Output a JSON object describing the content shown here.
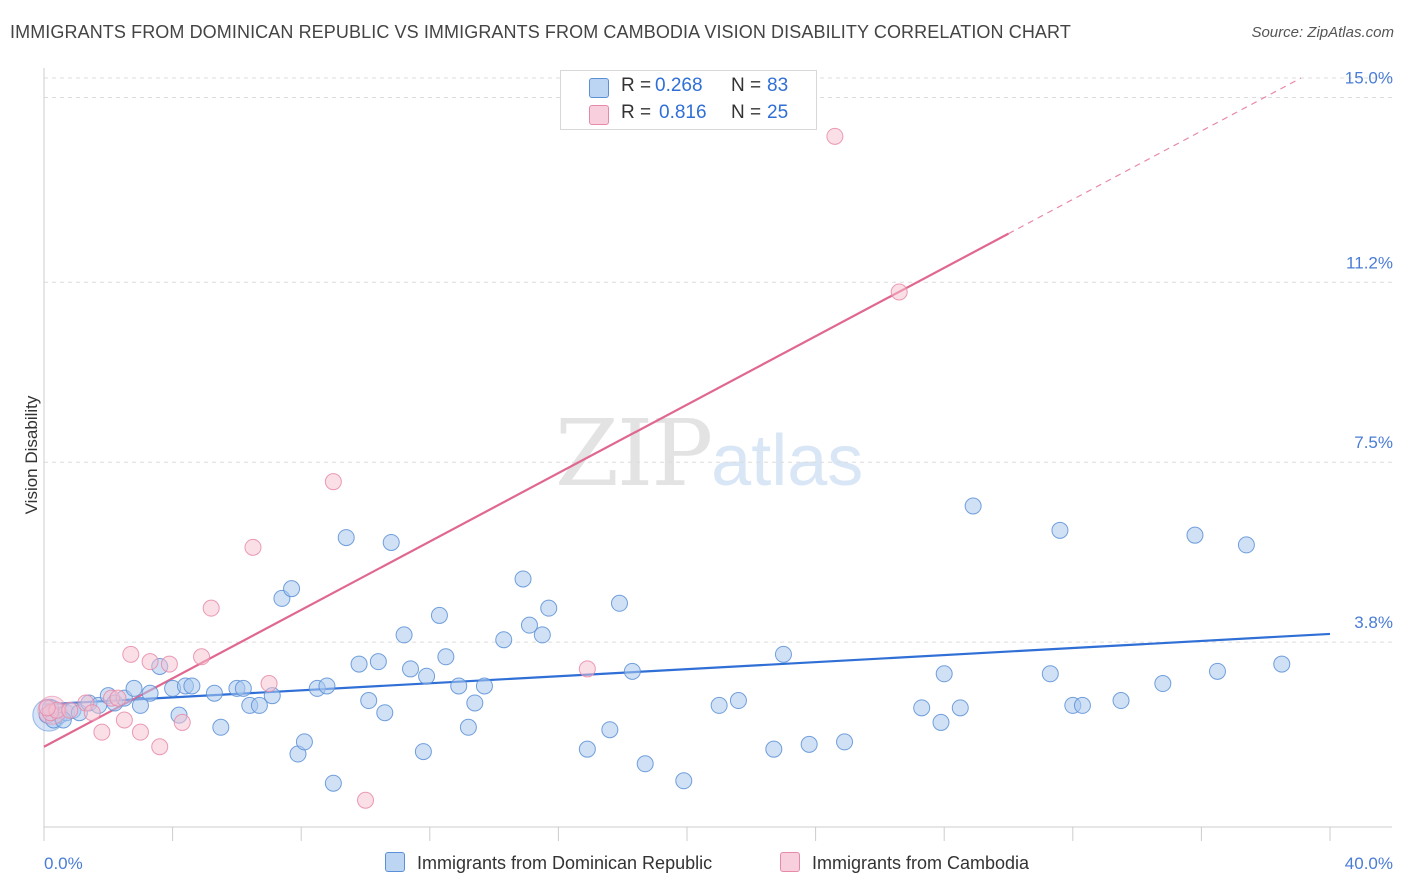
{
  "header": {
    "title": "IMMIGRANTS FROM DOMINICAN REPUBLIC VS IMMIGRANTS FROM CAMBODIA VISION DISABILITY CORRELATION CHART",
    "source": "Source: ZipAtlas.com"
  },
  "watermark": {
    "zip": "ZIP",
    "atlas": "atlas"
  },
  "legend": {
    "r_label": "R =",
    "n_label": "N =",
    "series": [
      {
        "r": "0.268",
        "n": "83"
      },
      {
        "r": "0.816",
        "n": "25"
      }
    ]
  },
  "bottom_legend": [
    "Immigrants from Dominican Republic",
    "Immigrants from Cambodia"
  ],
  "chart_data": {
    "type": "scatter",
    "title": "IMMIGRANTS FROM DOMINICAN REPUBLIC VS IMMIGRANTS FROM CAMBODIA VISION DISABILITY CORRELATION CHART",
    "xlabel": "",
    "ylabel": "Vision Disability",
    "xlim": [
      0,
      40
    ],
    "ylim": [
      0,
      15.4
    ],
    "x_tick_labels": [
      "0.0%",
      "40.0%"
    ],
    "y_ticks": [
      3.8,
      7.5,
      11.2,
      15.0
    ],
    "y_tick_labels": [
      "3.8%",
      "7.5%",
      "11.2%",
      "15.0%"
    ],
    "grid": true,
    "legend_position": "top-center",
    "colors": {
      "dominican_fill": "#a9c8ef",
      "dominican_stroke": "#5b8fd6",
      "dominican_line": "#2f6fd6",
      "cambodia_fill": "#f5bfd0",
      "cambodia_stroke": "#e889a8",
      "cambodia_line": "#e06890"
    },
    "series": [
      {
        "name": "Immigrants from Dominican Republic",
        "r": 0.268,
        "n": 83,
        "trend": {
          "x": [
            0,
            40
          ],
          "y": [
            2.52,
            3.97
          ]
        },
        "points": [
          [
            0.1,
            2.3
          ],
          [
            0.3,
            2.2
          ],
          [
            0.5,
            2.3
          ],
          [
            0.7,
            2.35
          ],
          [
            0.9,
            2.4
          ],
          [
            1.1,
            2.35
          ],
          [
            1.4,
            2.55
          ],
          [
            1.7,
            2.5
          ],
          [
            2.0,
            2.7
          ],
          [
            2.2,
            2.55
          ],
          [
            2.5,
            2.65
          ],
          [
            2.8,
            2.85
          ],
          [
            3.0,
            2.5
          ],
          [
            3.3,
            2.75
          ],
          [
            3.6,
            3.3
          ],
          [
            4.0,
            2.85
          ],
          [
            4.2,
            2.3
          ],
          [
            4.4,
            2.9
          ],
          [
            4.6,
            2.9
          ],
          [
            5.3,
            2.75
          ],
          [
            5.5,
            2.05
          ],
          [
            6.0,
            2.85
          ],
          [
            6.2,
            2.85
          ],
          [
            6.4,
            2.5
          ],
          [
            6.7,
            2.5
          ],
          [
            7.1,
            2.7
          ],
          [
            7.4,
            4.7
          ],
          [
            7.7,
            4.9
          ],
          [
            7.9,
            1.5
          ],
          [
            8.1,
            1.75
          ],
          [
            8.5,
            2.85
          ],
          [
            8.8,
            2.9
          ],
          [
            9.0,
            0.9
          ],
          [
            9.4,
            5.95
          ],
          [
            9.8,
            3.35
          ],
          [
            10.1,
            2.6
          ],
          [
            10.4,
            3.4
          ],
          [
            10.6,
            2.35
          ],
          [
            10.8,
            5.85
          ],
          [
            11.2,
            3.95
          ],
          [
            11.4,
            3.25
          ],
          [
            11.8,
            1.55
          ],
          [
            11.9,
            3.1
          ],
          [
            12.3,
            4.35
          ],
          [
            12.5,
            3.5
          ],
          [
            12.9,
            2.9
          ],
          [
            13.2,
            2.05
          ],
          [
            13.4,
            2.55
          ],
          [
            13.7,
            2.9
          ],
          [
            14.3,
            3.85
          ],
          [
            14.9,
            5.1
          ],
          [
            15.1,
            4.15
          ],
          [
            15.5,
            3.95
          ],
          [
            15.7,
            4.5
          ],
          [
            16.9,
            1.6
          ],
          [
            17.6,
            2.0
          ],
          [
            17.9,
            4.6
          ],
          [
            18.3,
            3.2
          ],
          [
            18.7,
            1.3
          ],
          [
            19.9,
            0.95
          ],
          [
            21.0,
            2.5
          ],
          [
            21.6,
            2.6
          ],
          [
            22.7,
            1.6
          ],
          [
            23.0,
            3.55
          ],
          [
            23.8,
            1.7
          ],
          [
            24.9,
            1.75
          ],
          [
            27.3,
            2.45
          ],
          [
            27.9,
            2.15
          ],
          [
            28.0,
            3.15
          ],
          [
            28.5,
            2.45
          ],
          [
            28.9,
            6.6
          ],
          [
            31.3,
            3.15
          ],
          [
            31.6,
            6.1
          ],
          [
            32.0,
            2.5
          ],
          [
            32.3,
            2.5
          ],
          [
            33.5,
            2.6
          ],
          [
            34.8,
            2.95
          ],
          [
            35.8,
            6.0
          ],
          [
            36.5,
            3.2
          ],
          [
            37.4,
            5.8
          ],
          [
            38.5,
            3.35
          ],
          [
            0.2,
            2.45
          ],
          [
            0.6,
            2.2
          ]
        ]
      },
      {
        "name": "Immigrants from Cambodia",
        "r": 0.816,
        "n": 25,
        "trend": {
          "x": [
            0,
            30
          ],
          "y": [
            1.65,
            12.2
          ]
        },
        "points": [
          [
            0.2,
            2.35
          ],
          [
            0.4,
            2.4
          ],
          [
            0.8,
            2.4
          ],
          [
            1.3,
            2.55
          ],
          [
            1.5,
            2.35
          ],
          [
            1.8,
            1.95
          ],
          [
            2.1,
            2.65
          ],
          [
            2.3,
            2.65
          ],
          [
            2.5,
            2.2
          ],
          [
            2.7,
            3.55
          ],
          [
            3.0,
            1.95
          ],
          [
            3.3,
            3.4
          ],
          [
            3.6,
            1.65
          ],
          [
            3.9,
            3.35
          ],
          [
            4.3,
            2.15
          ],
          [
            4.9,
            3.5
          ],
          [
            5.2,
            4.5
          ],
          [
            6.5,
            5.75
          ],
          [
            7.0,
            2.95
          ],
          [
            9.0,
            7.1
          ],
          [
            10.0,
            0.55
          ],
          [
            16.9,
            3.25
          ],
          [
            24.6,
            14.2
          ],
          [
            26.6,
            11.0
          ],
          [
            0.1,
            2.45
          ]
        ]
      }
    ]
  }
}
